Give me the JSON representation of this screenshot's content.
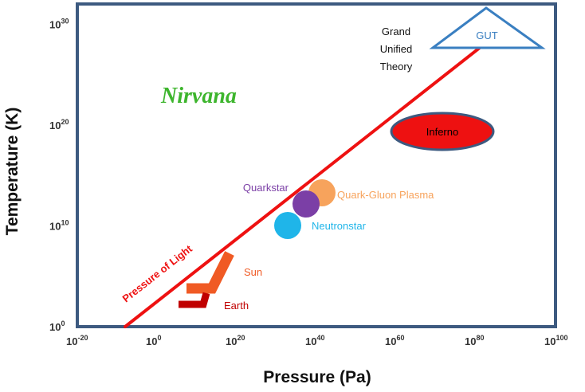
{
  "chart_data": {
    "type": "scatter",
    "xlabel": "Pressure (Pa)",
    "ylabel": "Temperature (K)",
    "x_scale": "log",
    "y_scale": "log",
    "x_ticks": [
      {
        "base": "10",
        "exp": "-20",
        "value": -20
      },
      {
        "base": "10",
        "exp": "0",
        "value": 0
      },
      {
        "base": "10",
        "exp": "20",
        "value": 20
      },
      {
        "base": "10",
        "exp": "40",
        "value": 40
      },
      {
        "base": "10",
        "exp": "60",
        "value": 60
      },
      {
        "base": "10",
        "exp": "80",
        "value": 80
      },
      {
        "base": "10",
        "exp": "100",
        "value": 100
      }
    ],
    "y_ticks": [
      {
        "base": "10",
        "exp": "0",
        "value": 0
      },
      {
        "base": "10",
        "exp": "10",
        "value": 10
      },
      {
        "base": "10",
        "exp": "20",
        "value": 20
      },
      {
        "base": "10",
        "exp": "30",
        "value": 30
      }
    ],
    "xlim_log10": [
      -20,
      100
    ],
    "ylim_log10": [
      0,
      32
    ],
    "grid": false,
    "pressure_of_light_line": {
      "label": "Pressure of Light",
      "color": "#ee1111",
      "log10_x": [
        -8,
        84
      ],
      "log10_y": [
        0,
        28.6
      ]
    },
    "regions": [
      {
        "label": "Nirvana",
        "log10_x": 10,
        "log10_y": 23,
        "shape": "text",
        "color": "#3db52d"
      },
      {
        "label": "Inferno",
        "log10_x": 66,
        "log10_y": 19.5,
        "shape": "ellipse",
        "color": "#ee1111"
      },
      {
        "label": "GUT",
        "log10_x": 86,
        "log10_y": 28.6,
        "shape": "triangle",
        "color": "#3a7fc1",
        "note_lines": [
          "Grand",
          "Unified",
          "Theory"
        ]
      }
    ],
    "points": [
      {
        "label": "Quark-Gluon Plasma",
        "log10_x": 42,
        "log10_y": 13.3,
        "color": "#f7a35c"
      },
      {
        "label": "Quarkstar",
        "log10_x": 38,
        "log10_y": 12.3,
        "color": "#7b3fa6"
      },
      {
        "label": "Neutronstar",
        "log10_x": 35,
        "log10_y": 9.5,
        "color": "#1fb5e9"
      },
      {
        "label": "Sun",
        "log10_x": 17,
        "log10_y": 5.5,
        "color": "#f05a24",
        "shape": "stroke"
      },
      {
        "label": "Earth",
        "log10_x": 11,
        "log10_y": 2.3,
        "color": "#c00000",
        "shape": "stroke"
      }
    ],
    "colors": {
      "frame": "#3d5a80",
      "axis_text": "#333333"
    }
  }
}
